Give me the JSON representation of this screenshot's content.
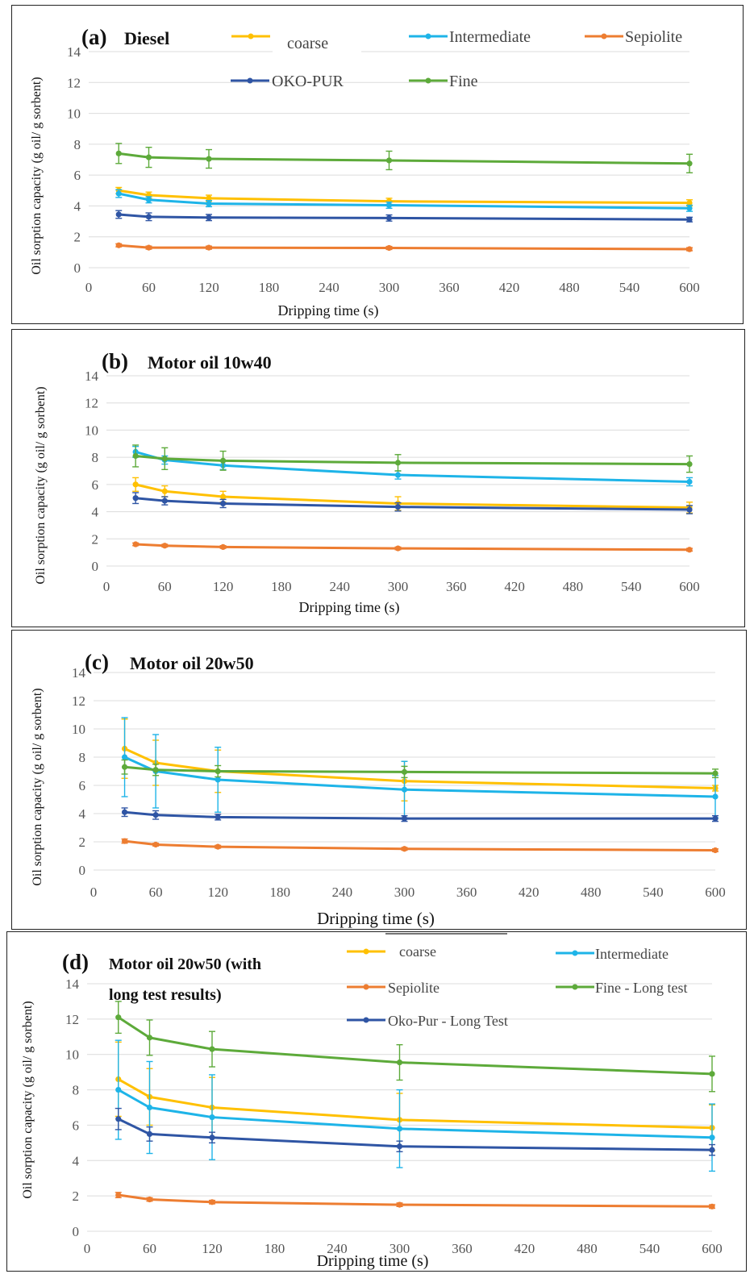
{
  "colors": {
    "coarse": "#FFC000",
    "intermediate": "#1EB4E8",
    "sepiolite": "#ED7D31",
    "okopur": "#2F55A4",
    "fine": "#5DAA3A"
  },
  "chart_data": [
    {
      "type": "line",
      "title_letter": "(a)",
      "title": "Diesel",
      "xlabel": "Dripping time (s)",
      "ylabel": "Oil sorption capacity (g oil/ g sorbent)",
      "xlim": [
        0,
        600
      ],
      "ylim": [
        0,
        14
      ],
      "xticks": [
        0,
        60,
        120,
        180,
        240,
        300,
        360,
        420,
        480,
        540,
        600
      ],
      "yticks": [
        0,
        2,
        4,
        6,
        8,
        10,
        12,
        14
      ],
      "grid": true,
      "legend_position": "top",
      "x": [
        30,
        60,
        120,
        300,
        600
      ],
      "series": [
        {
          "name": "coarse",
          "key": "coarse",
          "values": [
            5.0,
            4.7,
            4.5,
            4.3,
            4.2
          ],
          "err": [
            0.2,
            0.2,
            0.2,
            0.2,
            0.2
          ]
        },
        {
          "name": "Intermediate",
          "key": "intermediate",
          "values": [
            4.8,
            4.4,
            4.15,
            4.05,
            3.85
          ],
          "err": [
            0.25,
            0.2,
            0.2,
            0.2,
            0.2
          ]
        },
        {
          "name": "Sepiolite",
          "key": "sepiolite",
          "values": [
            1.45,
            1.3,
            1.3,
            1.28,
            1.2
          ],
          "err": [
            0.1,
            0.1,
            0.1,
            0.1,
            0.1
          ]
        },
        {
          "name": "OKO-PUR",
          "key": "okopur",
          "values": [
            3.45,
            3.3,
            3.25,
            3.22,
            3.12
          ],
          "err": [
            0.25,
            0.25,
            0.2,
            0.2,
            0.15
          ]
        },
        {
          "name": "Fine",
          "key": "fine",
          "values": [
            7.4,
            7.15,
            7.05,
            6.95,
            6.75
          ],
          "err": [
            0.65,
            0.65,
            0.6,
            0.6,
            0.6
          ]
        }
      ],
      "legend_labels": [
        "coarse",
        "Intermediate",
        "Sepiolite",
        "OKO-PUR",
        "Fine"
      ]
    },
    {
      "type": "line",
      "title_letter": "(b)",
      "title": "Motor oil 10w40",
      "xlabel": "Dripping time (s)",
      "ylabel": "Oil sorption capacity (g oil/ g sorbent)",
      "xlim": [
        0,
        600
      ],
      "ylim": [
        0,
        14
      ],
      "xticks": [
        0,
        60,
        120,
        180,
        240,
        300,
        360,
        420,
        480,
        540,
        600
      ],
      "yticks": [
        0,
        2,
        4,
        6,
        8,
        10,
        12,
        14
      ],
      "grid": true,
      "x": [
        30,
        60,
        120,
        300,
        600
      ],
      "series": [
        {
          "key": "coarse",
          "values": [
            6.0,
            5.5,
            5.1,
            4.6,
            4.3
          ],
          "err": [
            0.5,
            0.4,
            0.4,
            0.5,
            0.4
          ]
        },
        {
          "key": "intermediate",
          "values": [
            8.4,
            7.8,
            7.4,
            6.7,
            6.2
          ],
          "err": [
            0.4,
            0.3,
            0.3,
            0.3,
            0.3
          ]
        },
        {
          "key": "sepiolite",
          "values": [
            1.6,
            1.5,
            1.4,
            1.3,
            1.2
          ],
          "err": [
            0.1,
            0.1,
            0.1,
            0.1,
            0.1
          ]
        },
        {
          "key": "okopur",
          "values": [
            5.0,
            4.8,
            4.6,
            4.35,
            4.15
          ],
          "err": [
            0.4,
            0.3,
            0.3,
            0.3,
            0.3
          ]
        },
        {
          "key": "fine",
          "values": [
            8.1,
            7.9,
            7.75,
            7.6,
            7.5
          ],
          "err": [
            0.8,
            0.8,
            0.7,
            0.6,
            0.6
          ]
        }
      ]
    },
    {
      "type": "line",
      "title_letter": "(c)",
      "title": "Motor oil 20w50",
      "xlabel": "Dripping time (s)",
      "ylabel": "Oil sorption capacity (g oil/ g sorbent)",
      "xlim": [
        0,
        600
      ],
      "ylim": [
        0,
        14
      ],
      "xticks": [
        0,
        60,
        120,
        180,
        240,
        300,
        360,
        420,
        480,
        540,
        600
      ],
      "yticks": [
        0,
        2,
        4,
        6,
        8,
        10,
        12,
        14
      ],
      "grid": true,
      "x": [
        30,
        60,
        120,
        300,
        600
      ],
      "series": [
        {
          "key": "coarse",
          "values": [
            8.6,
            7.6,
            7.0,
            6.3,
            5.8
          ],
          "err": [
            2.1,
            1.6,
            1.5,
            1.4,
            0.2
          ]
        },
        {
          "key": "intermediate",
          "values": [
            8.0,
            7.0,
            6.4,
            5.7,
            5.2
          ],
          "err": [
            2.8,
            2.6,
            2.3,
            2.0,
            1.5
          ]
        },
        {
          "key": "sepiolite",
          "values": [
            2.05,
            1.8,
            1.65,
            1.5,
            1.4
          ],
          "err": [
            0.15,
            0.1,
            0.1,
            0.1,
            0.1
          ]
        },
        {
          "key": "okopur",
          "values": [
            4.1,
            3.9,
            3.75,
            3.65,
            3.65
          ],
          "err": [
            0.3,
            0.3,
            0.2,
            0.2,
            0.2
          ]
        },
        {
          "key": "fine",
          "values": [
            7.3,
            7.1,
            7.0,
            6.95,
            6.85
          ],
          "err": [
            0.5,
            0.4,
            0.4,
            0.4,
            0.3
          ]
        }
      ]
    },
    {
      "type": "line",
      "title_letter": "(d)",
      "title_line1": "Motor oil 20w50 (with",
      "title_line2": "long test results)",
      "xlabel": "Dripping time (s)",
      "ylabel": "Oil sorption capacity (g oil/ g sorbent)",
      "xlim": [
        0,
        600
      ],
      "ylim": [
        0,
        14
      ],
      "xticks": [
        0,
        60,
        120,
        180,
        240,
        300,
        360,
        420,
        480,
        540,
        600
      ],
      "yticks": [
        0,
        2,
        4,
        6,
        8,
        10,
        12,
        14
      ],
      "grid": true,
      "legend_position": "top",
      "x": [
        30,
        60,
        120,
        300,
        600
      ],
      "series": [
        {
          "name": "coarse",
          "key": "coarse",
          "values": [
            8.6,
            7.6,
            7.0,
            6.3,
            5.85
          ],
          "err": [
            2.1,
            1.6,
            1.7,
            1.5,
            1.3
          ]
        },
        {
          "name": "Intermediate",
          "key": "intermediate",
          "values": [
            8.0,
            7.0,
            6.45,
            5.8,
            5.3
          ],
          "err": [
            2.8,
            2.6,
            2.4,
            2.2,
            1.9
          ]
        },
        {
          "name": "Sepiolite",
          "key": "sepiolite",
          "values": [
            2.05,
            1.8,
            1.65,
            1.5,
            1.4
          ],
          "err": [
            0.15,
            0.1,
            0.1,
            0.1,
            0.1
          ]
        },
        {
          "name": "Fine - Long test",
          "key": "fine",
          "values": [
            12.1,
            10.95,
            10.3,
            9.55,
            8.9
          ],
          "err": [
            0.9,
            1.0,
            1.0,
            1.0,
            1.0
          ]
        },
        {
          "name": "Oko-Pur - Long Test",
          "key": "okopur",
          "values": [
            6.35,
            5.5,
            5.3,
            4.8,
            4.6
          ],
          "err": [
            0.6,
            0.4,
            0.3,
            0.3,
            0.3
          ]
        }
      ],
      "legend_labels": [
        "coarse",
        "Intermediate",
        "Sepiolite",
        "Fine - Long test",
        "Oko-Pur - Long Test"
      ]
    }
  ]
}
